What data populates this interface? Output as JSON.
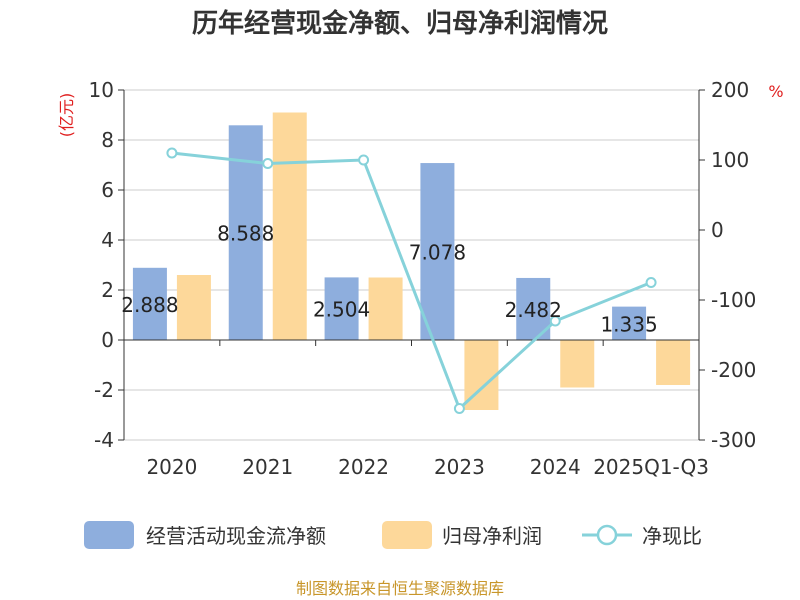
{
  "title": "历年经营现金净额、归母净利润情况",
  "source": "制图数据来自恒生聚源数据库",
  "colors": {
    "cash": "#8eaedd",
    "profit": "#fdd89a",
    "ratio": "#86d2da",
    "grid": "#cccccc",
    "axis": "#333333",
    "unit": "#e02020",
    "source": "#c8962a"
  },
  "chart_data": {
    "type": "bar",
    "title": "历年经营现金净额、归母净利润情况",
    "categories": [
      "2020",
      "2021",
      "2022",
      "2023",
      "2024",
      "2025Q1-Q3"
    ],
    "y_left": {
      "unit": "(亿元)",
      "range": [
        -4,
        10
      ],
      "ticks": [
        "-4",
        "-2",
        "0",
        "2",
        "4",
        "6",
        "8",
        "10"
      ]
    },
    "y_right": {
      "unit": "%",
      "range": [
        -300,
        200
      ],
      "ticks": [
        "-300",
        "-200",
        "-100",
        "0",
        "100",
        "200"
      ]
    },
    "grid": true,
    "legend_position": "bottom",
    "series": [
      {
        "name": "经营活动现金流净额",
        "type": "bar",
        "axis": "left",
        "values": [
          2.888,
          8.588,
          2.504,
          7.078,
          2.482,
          1.335
        ],
        "labels": [
          "2.888",
          "8.588",
          "2.504",
          "7.078",
          "2.482",
          "1.335"
        ]
      },
      {
        "name": "归母净利润",
        "type": "bar",
        "axis": "left",
        "values": [
          2.6,
          9.1,
          2.5,
          -2.8,
          -1.9,
          -1.8
        ]
      },
      {
        "name": "净现比",
        "type": "line",
        "axis": "right",
        "values": [
          110,
          95,
          100,
          -255,
          -130,
          -75
        ]
      }
    ]
  }
}
